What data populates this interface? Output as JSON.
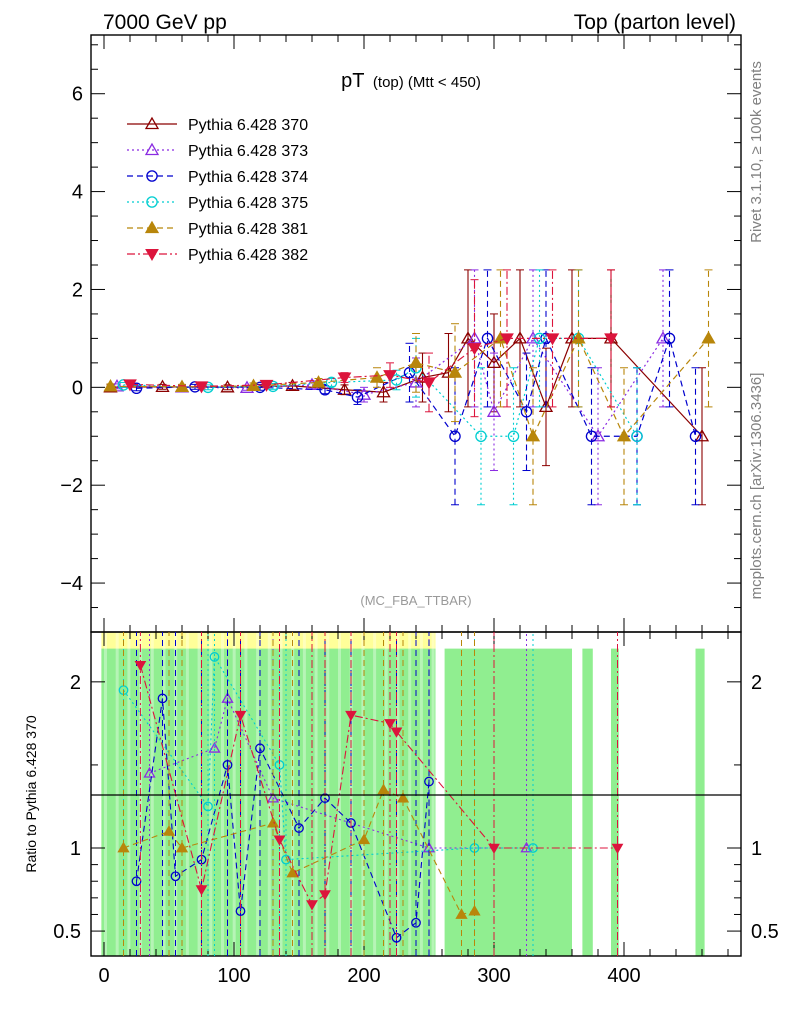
{
  "header": {
    "left": "7000 GeV pp",
    "right": "Top (parton level)"
  },
  "side_labels": {
    "rivet": "Rivet 3.1.10, ≥ 100k events",
    "mcplots": "mcplots.cern.ch [arXiv:1306.3436]"
  },
  "chart_data": [
    {
      "panel": "main",
      "type": "scatter",
      "title_main": "pT",
      "title_sub": "(top) (Mtt < 450)",
      "watermark": "(MC_FBA_TTBAR)",
      "xlim": [
        -10,
        490
      ],
      "ylim": [
        -5,
        7.2
      ],
      "x_ticks": [
        0,
        100,
        200,
        300,
        400
      ],
      "y_ticks": [
        -4,
        -2,
        0,
        2,
        4,
        6
      ],
      "y_tick_labels": [
        "−4",
        "−2",
        "0",
        "2",
        "4",
        "6"
      ],
      "grid": false,
      "legend_position": "top-left",
      "series": [
        {
          "name": "Pythia 6.428 370",
          "color": "#8b0000",
          "marker": "triangle-up-open",
          "line": "solid",
          "x": [
            5,
            45,
            95,
            145,
            185,
            215,
            245,
            265,
            280,
            300,
            320,
            340,
            360,
            390,
            460
          ],
          "y": [
            0,
            0.01,
            0,
            0.03,
            -0.05,
            -0.1,
            0.2,
            0.3,
            1,
            0.5,
            1,
            -0.4,
            1,
            1,
            -1
          ],
          "err": [
            0.05,
            0.05,
            0.05,
            0.07,
            0.1,
            0.2,
            0.5,
            0.8,
            1.4,
            1.0,
            1.4,
            1.2,
            1.4,
            1.4,
            1.4
          ]
        },
        {
          "name": "Pythia 6.428 373",
          "color": "#8a2be2",
          "marker": "triangle-up-open",
          "line": "dotted",
          "x": [
            10,
            60,
            110,
            160,
            200,
            240,
            285,
            300,
            330,
            380,
            430
          ],
          "y": [
            0.02,
            0,
            -0.01,
            0.05,
            -0.15,
            0.1,
            1,
            -0.5,
            1,
            -1,
            1
          ],
          "err": [
            0.05,
            0.05,
            0.05,
            0.08,
            0.15,
            0.5,
            1.4,
            1.2,
            1.4,
            1.4,
            1.4
          ]
        },
        {
          "name": "Pythia 6.428 374",
          "color": "#0000cd",
          "marker": "circle-open",
          "line": "dashed",
          "x": [
            25,
            70,
            120,
            170,
            195,
            235,
            270,
            295,
            325,
            340,
            375,
            410,
            435,
            455
          ],
          "y": [
            -0.02,
            0.01,
            0,
            -0.05,
            -0.2,
            0.3,
            -1,
            1,
            -0.5,
            1,
            -1,
            -1,
            1,
            -1
          ],
          "err": [
            0.05,
            0.05,
            0.06,
            0.08,
            0.15,
            0.6,
            1.4,
            1.4,
            1.2,
            1.4,
            1.4,
            1.4,
            1.4,
            1.4
          ]
        },
        {
          "name": "Pythia 6.428 375",
          "color": "#00ced1",
          "marker": "circle-open",
          "line": "dotted",
          "x": [
            15,
            80,
            130,
            175,
            225,
            240,
            290,
            315,
            335,
            365,
            410
          ],
          "y": [
            0.05,
            0,
            0.02,
            0.1,
            0.15,
            0.4,
            -1,
            -1,
            1,
            1,
            -1
          ],
          "err": [
            0.05,
            0.05,
            0.06,
            0.08,
            0.2,
            0.6,
            1.4,
            1.4,
            1.4,
            1.4,
            1.4
          ]
        },
        {
          "name": "Pythia 6.428 381",
          "color": "#b8860b",
          "marker": "triangle-up-filled",
          "line": "dashed",
          "x": [
            5,
            60,
            115,
            165,
            210,
            240,
            270,
            305,
            330,
            365,
            400,
            465
          ],
          "y": [
            0.02,
            0.01,
            0.03,
            0.1,
            0.2,
            0.5,
            0.3,
            1,
            -1,
            1,
            -1,
            1
          ],
          "err": [
            0.05,
            0.05,
            0.06,
            0.08,
            0.2,
            0.6,
            1.0,
            1.4,
            1.4,
            1.4,
            1.4,
            1.4
          ]
        },
        {
          "name": "Pythia 6.428 382",
          "color": "#dc143c",
          "marker": "triangle-down-filled",
          "line": "dashdot",
          "x": [
            20,
            75,
            125,
            185,
            220,
            250,
            285,
            310,
            345,
            390
          ],
          "y": [
            0.06,
            0.02,
            0.05,
            0.2,
            0.25,
            0.1,
            0.8,
            1,
            1,
            1
          ],
          "err": [
            0.05,
            0.05,
            0.06,
            0.1,
            0.25,
            0.6,
            1.4,
            1.4,
            1.4,
            1.4
          ]
        }
      ]
    },
    {
      "panel": "ratio",
      "type": "scatter",
      "ylabel": "Ratio to Pythia 6.428 370",
      "xlim": [
        -10,
        490
      ],
      "ylim": [
        0.35,
        2.3
      ],
      "y_ticks": [
        0.5,
        1,
        2
      ],
      "y_tick_labels": [
        "0.5",
        "1",
        "2"
      ],
      "reference_line": 1,
      "band_colors": {
        "inner": "#90ee90",
        "outer": "#ffff99"
      },
      "series": [
        {
          "name": "Pythia 6.428 373",
          "x": [
            35,
            85,
            95,
            130,
            250,
            325
          ],
          "y": [
            1.45,
            1.6,
            1.9,
            1.3,
            1.0,
            1.0
          ]
        },
        {
          "name": "Pythia 6.428 374",
          "x": [
            25,
            45,
            55,
            75,
            95,
            105,
            120,
            150,
            170,
            190,
            225,
            240,
            250
          ],
          "y": [
            0.8,
            1.9,
            0.83,
            0.93,
            1.5,
            0.62,
            1.6,
            1.12,
            1.3,
            1.15,
            0.46,
            0.55,
            1.4
          ]
        },
        {
          "name": "Pythia 6.428 375",
          "x": [
            15,
            80,
            85,
            135,
            140,
            285,
            330
          ],
          "y": [
            1.95,
            1.25,
            2.15,
            1.5,
            0.93,
            1.0,
            1.0
          ]
        },
        {
          "name": "Pythia 6.428 381",
          "x": [
            15,
            50,
            60,
            130,
            145,
            200,
            215,
            230,
            275,
            285
          ],
          "y": [
            1.0,
            1.1,
            1.0,
            1.15,
            0.85,
            1.05,
            1.35,
            1.3,
            0.6,
            0.62
          ]
        },
        {
          "name": "Pythia 6.428 382",
          "x": [
            28,
            75,
            105,
            135,
            160,
            170,
            190,
            220,
            225,
            300,
            395
          ],
          "y": [
            2.1,
            0.75,
            1.8,
            1.05,
            0.66,
            0.72,
            1.8,
            1.75,
            1.7,
            1.0,
            1.0
          ]
        }
      ]
    }
  ]
}
